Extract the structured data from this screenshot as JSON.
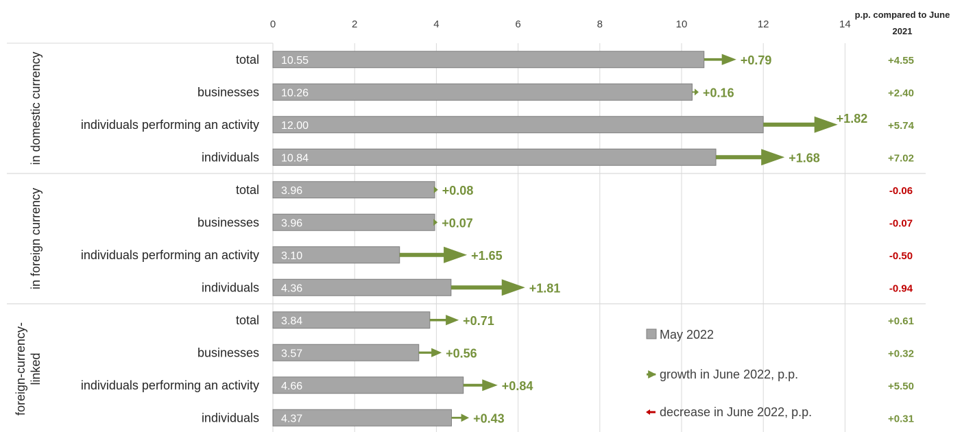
{
  "colors": {
    "bar": "#a6a6a6",
    "bar_stroke": "#7f7f7f",
    "growth": "#76923c",
    "decrease": "#c00000",
    "grid": "#d9d9d9"
  },
  "header": {
    "pp_line1": "p.p. compared to June",
    "pp_line2": "2021"
  },
  "legend": {
    "bar": "May 2022",
    "growth": "growth in June 2022, p.p.",
    "decrease": "decrease in June 2022, p.p."
  },
  "chart_data": {
    "type": "bar",
    "orientation": "horizontal",
    "xlim": [
      0,
      14
    ],
    "x_ticks": [
      0,
      2,
      4,
      6,
      8,
      10,
      12,
      14
    ],
    "grid": true,
    "groups": [
      {
        "name": "in domestic currency",
        "rows": [
          {
            "label": "total",
            "value": 10.55,
            "value_label": "10.55",
            "change": 0.79,
            "change_label": "+0.79",
            "pp": "+4.55",
            "pp_sign": "positive"
          },
          {
            "label": "businesses",
            "value": 10.26,
            "value_label": "10.26",
            "change": 0.16,
            "change_label": "+0.16",
            "pp": "+2.40",
            "pp_sign": "positive"
          },
          {
            "label": "individuals performing an activity",
            "value": 12.0,
            "value_label": "12.00",
            "change": 1.82,
            "change_label": "+1.82",
            "pp": "+5.74",
            "pp_sign": "positive"
          },
          {
            "label": "individuals",
            "value": 10.84,
            "value_label": "10.84",
            "change": 1.68,
            "change_label": "+1.68",
            "pp": "+7.02",
            "pp_sign": "positive"
          }
        ]
      },
      {
        "name": "in foreign currency",
        "rows": [
          {
            "label": "total",
            "value": 3.96,
            "value_label": "3.96",
            "change": 0.08,
            "change_label": "+0.08",
            "pp": "-0.06",
            "pp_sign": "negative"
          },
          {
            "label": "businesses",
            "value": 3.96,
            "value_label": "3.96",
            "change": 0.07,
            "change_label": "+0.07",
            "pp": "-0.07",
            "pp_sign": "negative"
          },
          {
            "label": "individuals performing an activity",
            "value": 3.1,
            "value_label": "3.10",
            "change": 1.65,
            "change_label": "+1.65",
            "pp": "-0.50",
            "pp_sign": "negative"
          },
          {
            "label": "individuals",
            "value": 4.36,
            "value_label": "4.36",
            "change": 1.81,
            "change_label": "+1.81",
            "pp": "-0.94",
            "pp_sign": "negative"
          }
        ]
      },
      {
        "name": "foreign-currency-linked",
        "name_lines": [
          "foreign-currency-",
          "linked"
        ],
        "rows": [
          {
            "label": "total",
            "value": 3.84,
            "value_label": "3.84",
            "change": 0.71,
            "change_label": "+0.71",
            "pp": "+0.61",
            "pp_sign": "positive"
          },
          {
            "label": "businesses",
            "value": 3.57,
            "value_label": "3.57",
            "change": 0.56,
            "change_label": "+0.56",
            "pp": "+0.32",
            "pp_sign": "positive"
          },
          {
            "label": "individuals performing an activity",
            "value": 4.66,
            "value_label": "4.66",
            "change": 0.84,
            "change_label": "+0.84",
            "pp": "+5.50",
            "pp_sign": "positive"
          },
          {
            "label": "individuals",
            "value": 4.37,
            "value_label": "4.37",
            "change": 0.43,
            "change_label": "+0.43",
            "pp": "+0.31",
            "pp_sign": "positive"
          }
        ]
      }
    ]
  }
}
